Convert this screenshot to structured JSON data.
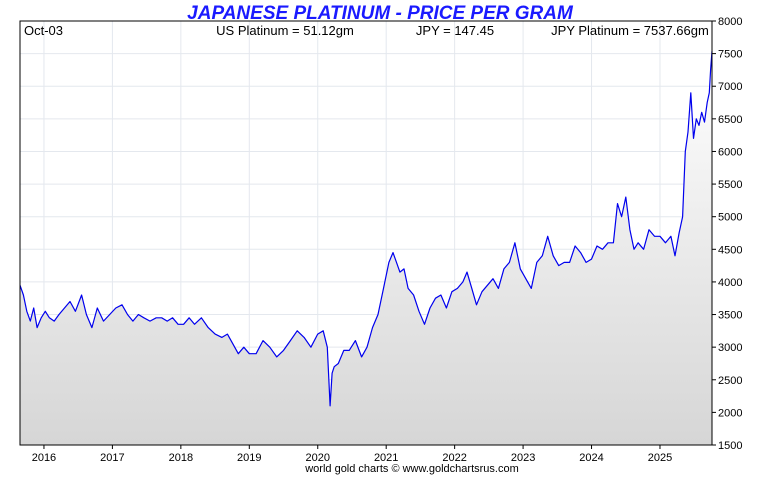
{
  "chart_data": {
    "type": "area",
    "title": "JAPANESE PLATINUM - PRICE PER GRAM",
    "header": {
      "date": "Oct-03",
      "us_platinum": "US Platinum = 51.12gm",
      "jpy_rate": "JPY = 147.45",
      "jpy_platinum": "JPY Platinum = 7537.66gm"
    },
    "footer": "world gold charts © www.goldchartsrus.com",
    "xlabel": "",
    "ylabel": "",
    "x_range": [
      2015.65,
      2025.76
    ],
    "ylim": [
      1500,
      8000
    ],
    "y_ticks": [
      1500,
      2000,
      2500,
      3000,
      3500,
      4000,
      4500,
      5000,
      5500,
      6000,
      6500,
      7000,
      7500,
      8000
    ],
    "x_ticks": [
      {
        "label": "2016",
        "year": 2016
      },
      {
        "label": "2017",
        "year": 2017
      },
      {
        "label": "2018",
        "year": 2018
      },
      {
        "label": "2019",
        "year": 2019
      },
      {
        "label": "2020",
        "year": 2020
      },
      {
        "label": "2021",
        "year": 2021
      },
      {
        "label": "2022",
        "year": 2022
      },
      {
        "label": "2023",
        "year": 2023
      },
      {
        "label": "2024",
        "year": 2024
      },
      {
        "label": "2025",
        "year": 2025
      }
    ],
    "grid": true,
    "y_axis_side": "right",
    "colors": {
      "line": "#0000ee",
      "title": "#1a1aff",
      "grid": "#e4e8ee",
      "fill_top": "#ffffff",
      "fill_bottom": "#d6d6d6"
    },
    "series": [
      {
        "x": [
          2015.65,
          2015.7,
          2015.75,
          2015.8,
          2015.85,
          2015.9,
          2015.96,
          2016.02,
          2016.08,
          2016.15,
          2016.22,
          2016.3,
          2016.38,
          2016.46,
          2016.55,
          2016.62,
          2016.7,
          2016.78,
          2016.87,
          2016.96,
          2017.05,
          2017.14,
          2017.22,
          2017.3,
          2017.38,
          2017.46,
          2017.55,
          2017.64,
          2017.72,
          2017.8,
          2017.88,
          2017.96,
          2018.04,
          2018.12,
          2018.2,
          2018.3,
          2018.4,
          2018.5,
          2018.6,
          2018.68,
          2018.76,
          2018.84,
          2018.92,
          2019.0,
          2019.1,
          2019.2,
          2019.3,
          2019.4,
          2019.5,
          2019.6,
          2019.7,
          2019.8,
          2019.9,
          2020.0,
          2020.08,
          2020.14,
          2020.18,
          2020.21,
          2020.24,
          2020.3,
          2020.38,
          2020.46,
          2020.55,
          2020.64,
          2020.72,
          2020.8,
          2020.88,
          2020.96,
          2021.04,
          2021.1,
          2021.15,
          2021.2,
          2021.26,
          2021.32,
          2021.4,
          2021.48,
          2021.56,
          2021.64,
          2021.72,
          2021.8,
          2021.88,
          2021.96,
          2022.04,
          2022.12,
          2022.18,
          2022.25,
          2022.32,
          2022.4,
          2022.48,
          2022.56,
          2022.64,
          2022.72,
          2022.8,
          2022.88,
          2022.96,
          2023.04,
          2023.12,
          2023.2,
          2023.28,
          2023.36,
          2023.44,
          2023.52,
          2023.6,
          2023.68,
          2023.76,
          2023.84,
          2023.92,
          2024.0,
          2024.08,
          2024.16,
          2024.24,
          2024.32,
          2024.38,
          2024.44,
          2024.5,
          2024.56,
          2024.62,
          2024.68,
          2024.76,
          2024.84,
          2024.92,
          2025.0,
          2025.08,
          2025.16,
          2025.22,
          2025.28,
          2025.33,
          2025.37,
          2025.41,
          2025.45,
          2025.49,
          2025.53,
          2025.57,
          2025.61,
          2025.65,
          2025.69,
          2025.72,
          2025.74,
          2025.76
        ],
        "y": [
          3950,
          3800,
          3550,
          3400,
          3600,
          3300,
          3450,
          3550,
          3450,
          3400,
          3500,
          3600,
          3700,
          3550,
          3800,
          3500,
          3300,
          3600,
          3400,
          3500,
          3600,
          3650,
          3500,
          3400,
          3500,
          3450,
          3400,
          3450,
          3450,
          3400,
          3450,
          3350,
          3350,
          3450,
          3350,
          3450,
          3300,
          3200,
          3150,
          3200,
          3050,
          2900,
          3000,
          2900,
          2900,
          3100,
          3000,
          2850,
          2950,
          3100,
          3250,
          3150,
          3000,
          3200,
          3250,
          3000,
          2100,
          2600,
          2700,
          2750,
          2950,
          2950,
          3100,
          2850,
          3000,
          3300,
          3500,
          3900,
          4300,
          4450,
          4300,
          4150,
          4200,
          3900,
          3800,
          3550,
          3350,
          3600,
          3750,
          3800,
          3600,
          3850,
          3900,
          4000,
          4150,
          3900,
          3650,
          3850,
          3950,
          4050,
          3900,
          4200,
          4300,
          4600,
          4200,
          4050,
          3900,
          4300,
          4400,
          4700,
          4400,
          4250,
          4300,
          4300,
          4550,
          4450,
          4300,
          4350,
          4550,
          4500,
          4600,
          4600,
          5200,
          5000,
          5300,
          4800,
          4500,
          4600,
          4500,
          4800,
          4700,
          4700,
          4600,
          4700,
          4400,
          4750,
          5000,
          6000,
          6300,
          6900,
          6200,
          6500,
          6400,
          6600,
          6450,
          6750,
          6900,
          7250,
          7537
        ]
      }
    ]
  }
}
